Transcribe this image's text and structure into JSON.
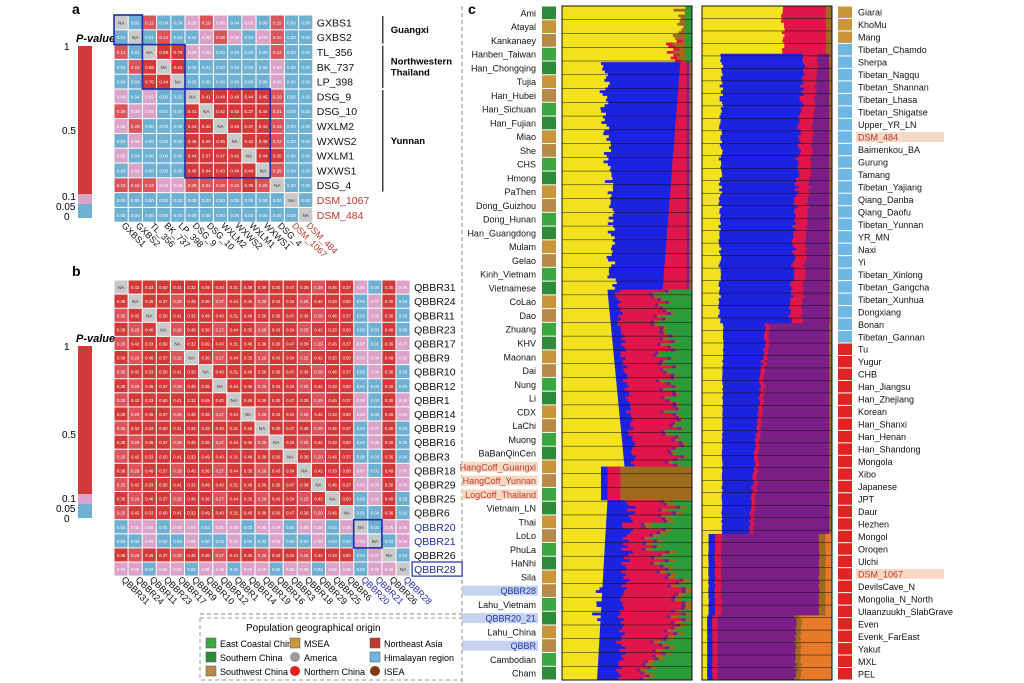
{
  "panel_labels": {
    "a": "a",
    "b": "b",
    "c": "c"
  },
  "colorbar": {
    "title": "P-value",
    "ticks": [
      "1",
      "0.5",
      "0.1",
      "0.05",
      "0"
    ],
    "colors": {
      "high": "#d23a3a",
      "mid": "#e58a97",
      "low": "#dba3c8",
      "lowest": "#6fb0d2"
    }
  },
  "chart_data": [
    {
      "type": "heatmap",
      "panel": "a",
      "rows": [
        "GXBS1",
        "GXBS2",
        "TL_356",
        "BK_737",
        "LP_398",
        "DSG_9",
        "DSG_10",
        "WXLM2",
        "WXWS2",
        "WXLM1",
        "WXWS1",
        "DSG_4",
        "DSM_1067",
        "DSM_484"
      ],
      "columns": [
        "GXBS1",
        "GXBS2",
        "TL_356",
        "BK_737",
        "LP_398",
        "DSG_9",
        "DSG_10",
        "WXLM2",
        "WXWS2",
        "WXLM1",
        "WXWS1",
        "DSG_4",
        "DSM_1067",
        "DSM_484"
      ],
      "highlighted_labels": [
        "DSM_1067",
        "DSM_484"
      ],
      "diagonal_label": "NA",
      "groups": [
        {
          "name": "Guangxi",
          "rows": [
            "GXBS1",
            "GXBS2"
          ]
        },
        {
          "name": "Northwestern Thailand",
          "rows": [
            "TL_356",
            "BK_737",
            "LP_398"
          ]
        },
        {
          "name": "Yunnan",
          "rows": [
            "DSG_9",
            "DSG_10",
            "WXLM2",
            "WXWS2",
            "WXLM1",
            "WXWS1",
            "DSG_4"
          ]
        }
      ],
      "values": [
        [
          "NA",
          0.01,
          0.12,
          0.04,
          0.04,
          0.08,
          0.29,
          0.06,
          0.04,
          0.05,
          0.0,
          0.15,
          0.0,
          0.0
        ],
        [
          0.01,
          "NA",
          0.01,
          0.12,
          0.04,
          0.04,
          0.08,
          0.29,
          0.06,
          0.04,
          0.05,
          0.1,
          0.0,
          0.0
        ],
        [
          0.12,
          0.01,
          "NA",
          0.89,
          0.7,
          0.09,
          0.05,
          0.0,
          0.0,
          0.0,
          0.0,
          0.12,
          0.0,
          0.0
        ],
        [
          0.04,
          0.12,
          0.89,
          "NA",
          0.44,
          0.0,
          0.01,
          0.0,
          0.0,
          0.0,
          0.0,
          0.06,
          0.0,
          0.0
        ],
        [
          0.04,
          0.04,
          0.7,
          0.44,
          "NA",
          0.02,
          0.0,
          0.0,
          0.0,
          0.0,
          0.0,
          0.08,
          0.0,
          0.0
        ],
        [
          0.08,
          0.04,
          0.09,
          0.0,
          0.02,
          "NA",
          0.41,
          0.44,
          0.46,
          0.44,
          0.45,
          0.29,
          0.0,
          0.0
        ],
        [
          0.29,
          0.08,
          0.05,
          0.01,
          0.0,
          0.41,
          "NA",
          0.42,
          0.4,
          0.37,
          0.44,
          0.21,
          0.0,
          0.0
        ],
        [
          0.06,
          0.29,
          0.0,
          0.0,
          0.0,
          0.44,
          0.42,
          "NA",
          0.45,
          0.47,
          0.43,
          0.19,
          0.0,
          0.0
        ],
        [
          0.04,
          0.06,
          0.0,
          0.0,
          0.0,
          0.46,
          0.4,
          0.45,
          "NA",
          0.42,
          0.48,
          0.22,
          0.0,
          0.0
        ],
        [
          0.05,
          0.04,
          0.0,
          0.0,
          0.0,
          0.44,
          0.37,
          0.47,
          0.42,
          "NA",
          0.44,
          0.35,
          0.0,
          0.0
        ],
        [
          0.0,
          0.05,
          0.0,
          0.0,
          0.0,
          0.45,
          0.44,
          0.43,
          0.48,
          0.44,
          "NA",
          0.25,
          0.0,
          0.0
        ],
        [
          0.15,
          0.1,
          0.12,
          0.06,
          0.08,
          0.29,
          0.21,
          0.19,
          0.22,
          0.35,
          0.25,
          "NA",
          0.0,
          0.0
        ],
        [
          0.0,
          0.0,
          0.0,
          0.0,
          0.0,
          0.0,
          0.0,
          0.0,
          0.0,
          0.0,
          0.0,
          0.0,
          "NA",
          0.0
        ],
        [
          0.0,
          0.0,
          0.0,
          0.0,
          0.0,
          0.0,
          0.0,
          0.0,
          0.0,
          0.0,
          0.0,
          0.0,
          0.0,
          "NA"
        ]
      ]
    },
    {
      "type": "heatmap",
      "panel": "b",
      "rows": [
        "QBBR31",
        "QBBR24",
        "QBBR11",
        "QBBR23",
        "QBBR17",
        "QBBR9",
        "QBBR10",
        "QBBR12",
        "QBBR1",
        "QBBR14",
        "QBBR19",
        "QBBR16",
        "QBBR3",
        "QBBR18",
        "QBBR29",
        "QBBR25",
        "QBBR6",
        "QBBR20",
        "QBBR21",
        "QBBR26",
        "QBBR28"
      ],
      "columns": [
        "QBBR31",
        "QBBR24",
        "QBBR11",
        "QBBR23",
        "QBBR17",
        "QBBR9",
        "QBBR10",
        "QBBR12",
        "QBBR1",
        "QBBR14",
        "QBBR19",
        "QBBR16",
        "QBBR3",
        "QBBR18",
        "QBBR29",
        "QBBR25",
        "QBBR6",
        "QBBR20",
        "QBBR21",
        "QBBR26",
        "QBBR28"
      ],
      "highlighted_labels": [
        "QBBR20",
        "QBBR21",
        "QBBR28"
      ],
      "diagonal_label": "NA",
      "low_pvalue_rows": [
        "QBBR20",
        "QBBR21",
        "QBBR28"
      ],
      "typical_value_range": [
        0.25,
        0.5
      ]
    },
    {
      "type": "area",
      "panel": "c",
      "description_kind": "ADMIXTURE ancestry proportions",
      "ancestry_colors": [
        "#f2e21d",
        "#1b22e0",
        "#e0164a",
        "#7a1f86",
        "#a06a1e",
        "#2a9a3a",
        "#e77a2a"
      ],
      "left_populations": [
        "Ami",
        "Atayal",
        "Kankanaey",
        "Hanben_Taiwan",
        "Han_Chongqing",
        "Tujia",
        "Han_Hubei",
        "Han_Sichuan",
        "Han_Fujian",
        "Miao",
        "She",
        "CHS",
        "Hmong",
        "PaThen",
        "Dong_Guizhou",
        "Dong_Hunan",
        "Han_Guangdong",
        "Mulam",
        "Gelao",
        "Kinh_Vietnam",
        "Vietnamese",
        "CoLao",
        "Dao",
        "Zhuang",
        "KHV",
        "Maonan",
        "Dai",
        "Nung",
        "Li",
        "CDX",
        "LaChi",
        "Muong",
        "BaBanQinCen",
        "HangCoff_Guangxi",
        "HangCoff_Yunnan",
        "LogCoff_Thailand",
        "Vietnam_LN",
        "Thai",
        "LoLo",
        "PhuLa",
        "HaNhi",
        "Sila",
        "QBBR28",
        "Lahu_Vietnam",
        "QBBR20_21",
        "Lahu_China",
        "QBBR",
        "Cambodian",
        "Cham"
      ],
      "right_populations": [
        "Giarai",
        "KhoMu",
        "Mang",
        "Tibetan_Chamdo",
        "Sherpa",
        "Tibetan_Nagqu",
        "Tibetan_Shannan",
        "Tibetan_Lhasa",
        "Tibetan_Shigatse",
        "Upper_YR_LN",
        "DSM_484",
        "Baimenkou_BA",
        "Gurung",
        "Tamang",
        "Tibetan_Yajiang",
        "Qiang_Danba",
        "Qiang_Daofu",
        "Tibetan_Yunnan",
        "YR_MN",
        "Naxi",
        "Yi",
        "Tibetan_Xinlong",
        "Tibetan_Gangcha",
        "Tibetan_Xunhua",
        "Dongxiang",
        "Bonan",
        "Tibetan_Gannan",
        "Tu",
        "Yugur",
        "CHB",
        "Han_Jiangsu",
        "Han_Zhejiang",
        "Korean",
        "Han_Shanxi",
        "Han_Henan",
        "Han_Shandong",
        "Mongola",
        "Xibo",
        "Japanese",
        "JPT",
        "Daur",
        "Hezhen",
        "Mongol",
        "Oroqen",
        "Ulchi",
        "DSM_1067",
        "DevilsCave_N",
        "Mongolia_N_North",
        "Ulaanzuukh_SlabGrave",
        "Even",
        "Evenk_FarEast",
        "Yakut",
        "MXL",
        "PEL"
      ],
      "highlighted_populations": [
        "HangCoff_Guangxi",
        "HangCoff_Yunnan",
        "LogCoff_Thailand",
        "QBBR28",
        "QBBR20_21",
        "QBBR",
        "DSM_484",
        "DSM_1067"
      ]
    }
  ],
  "legend": {
    "title": "Population geographical origin",
    "items": [
      {
        "label": "East Coastal China",
        "color": "#3aa63f",
        "icon": "leaf-swatch-icon"
      },
      {
        "label": "MSEA",
        "color": "#c9963a",
        "icon": "gold-swatch-icon"
      },
      {
        "label": "Northeast Asia",
        "color": "#c0392b",
        "icon": "red-swatch-icon"
      },
      {
        "label": "Southern China",
        "color": "#2e8b3a",
        "icon": "dark-leaf-swatch-icon"
      },
      {
        "label": "America",
        "color": "#9a9a9a",
        "icon": "gray-circle-icon"
      },
      {
        "label": "Himalayan region",
        "color": "#6fb7e0",
        "icon": "wave-swatch-icon"
      },
      {
        "label": "Southwest China",
        "color": "#b88a4a",
        "icon": "stripe-swatch-icon"
      },
      {
        "label": "Northern China",
        "color": "#e02424",
        "icon": "red-circle-icon"
      },
      {
        "label": "ISEA",
        "color": "#7a3b12",
        "icon": "brown-circle-icon"
      }
    ]
  }
}
